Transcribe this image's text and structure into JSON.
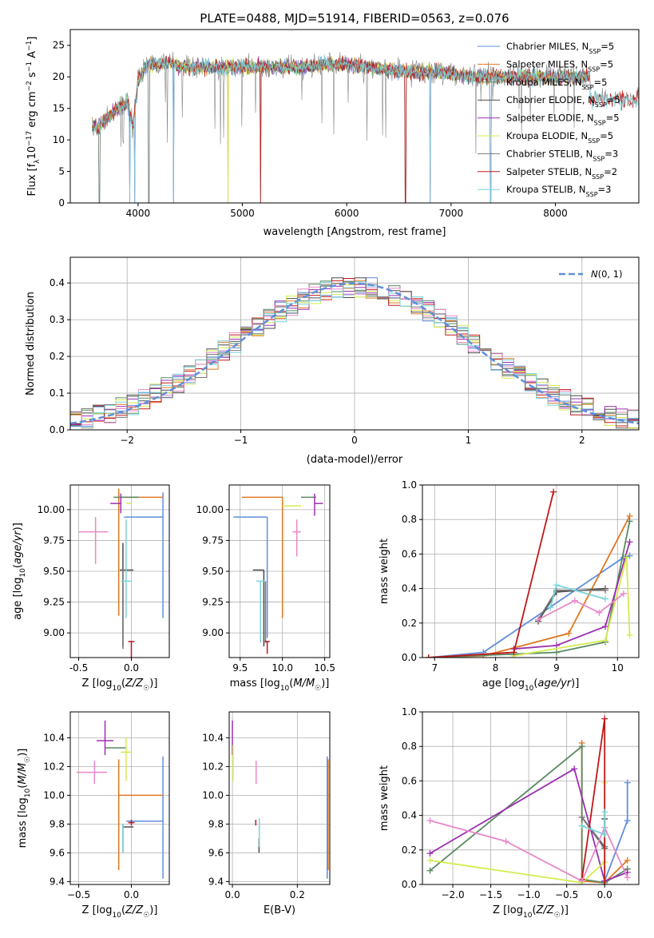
{
  "figure_title": "PLATE=0488, MJD=51914, FIBERID=0563, z=0.076",
  "chart_data": [
    {
      "id": "spectrum",
      "type": "line",
      "title": "PLATE=0488, MJD=51914, FIBERID=0563, z=0.076",
      "xlabel": "wavelength [Angstrom, rest frame]",
      "ylabel": "Flux [f_λ 10^-17 erg cm^-2 s^-1 A^-1]",
      "xlim": [
        3350,
        8800
      ],
      "ylim": [
        0,
        27.5
      ],
      "xticks": [
        4000,
        5000,
        6000,
        7000,
        8000
      ],
      "yticks": [
        0,
        5,
        10,
        15,
        20,
        25
      ],
      "grid": false,
      "legend_position": "top-right",
      "continuum": {
        "x": [
          3560,
          3620,
          3700,
          3800,
          3900,
          3950,
          4000,
          4100,
          4300,
          4500,
          4800,
          5000,
          5200,
          5500,
          5800,
          6000,
          6200,
          6400,
          6600,
          6800,
          7000,
          7200,
          7400
        ],
        "y": [
          12.5,
          12.0,
          13.5,
          15.0,
          16.0,
          12.0,
          19.5,
          22.0,
          22.0,
          21.5,
          21.5,
          21.5,
          21.5,
          21.5,
          22.0,
          22.0,
          21.5,
          21.0,
          20.8,
          20.8,
          20.5,
          20.0,
          20.0
        ]
      },
      "series": [
        {
          "name": "Chabrier MILES, N_SSP=5",
          "color": "#5f8fdb"
        },
        {
          "name": "Salpeter MILES, N_SSP=5",
          "color": "#e07820"
        },
        {
          "name": "Kroupa MILES, N_SSP=5",
          "color": "#5a8a62"
        },
        {
          "name": "Chabrier ELODIE, N_SSP=5",
          "color": "#4a4a4a"
        },
        {
          "name": "Salpeter ELODIE, N_SSP=5",
          "color": "#9b30b0"
        },
        {
          "name": "Kroupa ELODIE, N_SSP=5",
          "color": "#d4ec50"
        },
        {
          "name": "Chabrier STELIB, N_SSP=3",
          "color": "#7a7a7a"
        },
        {
          "name": "Salpeter STELIB, N_SSP=2",
          "color": "#c01818"
        },
        {
          "name": "Kroupa STELIB, N_SSP=3",
          "color": "#79d4dc"
        }
      ]
    },
    {
      "id": "residuals",
      "type": "histogram",
      "xlabel": "(data-model)/error",
      "ylabel": "Normed distribution",
      "xlim": [
        -2.5,
        2.5
      ],
      "ylim": [
        0,
        0.47
      ],
      "xticks": [
        -2,
        -1,
        0,
        1,
        2
      ],
      "yticks": [
        0.0,
        0.1,
        0.2,
        0.3,
        0.4
      ],
      "grid": true,
      "legend_position": "top-right",
      "reference_curve": {
        "name": "N(0,1)",
        "mean": 0,
        "sigma": 1,
        "color": "#5f8fdb",
        "style": "dashed"
      },
      "bin_width": 0.1
    },
    {
      "id": "age_vs_Z",
      "type": "errorbar",
      "xlabel": "Z [log10(Z/Z☉)]",
      "ylabel": "age [log10(age/yr)]",
      "xlim": [
        -0.58,
        0.36
      ],
      "ylim": [
        8.8,
        10.2
      ],
      "xticks": [
        -0.5,
        0.0
      ],
      "yticks": [
        9.0,
        9.25,
        9.5,
        9.75,
        10.0
      ],
      "grid": true,
      "points": [
        {
          "color": "#5f8fdb",
          "x": 0.3,
          "y": 9.94,
          "xerr": [
            0.37,
            0.0
          ],
          "yerr": [
            0.82,
            0.2
          ]
        },
        {
          "color": "#e07820",
          "x": -0.12,
          "y": 10.1,
          "xerr": [
            0.0,
            0.42
          ],
          "yerr": [
            0.96,
            0.07
          ]
        },
        {
          "color": "#5a8a62",
          "x": -0.05,
          "y": 10.1,
          "xerr": [
            0.12,
            0.12
          ],
          "yerr": [
            0.0,
            0.0
          ]
        },
        {
          "color": "#4a4a4a",
          "x": -0.08,
          "y": 9.51,
          "xerr": [
            0.03,
            0.1
          ],
          "yerr": [
            0.62,
            0.22
          ]
        },
        {
          "color": "#9b30b0",
          "x": -0.1,
          "y": 10.05,
          "xerr": [
            0.1,
            0.0
          ],
          "yerr": [
            0.08,
            0.08
          ]
        },
        {
          "color": "#d4ec50",
          "x": -0.05,
          "y": 10.05,
          "xerr": [
            0.0,
            0.05
          ],
          "yerr": [
            0.0,
            0.0
          ]
        },
        {
          "color": "#7a7a7a",
          "x": -0.08,
          "y": 9.42,
          "xerr": [
            0.0,
            0.0
          ],
          "yerr": [
            0.55,
            0.1
          ]
        },
        {
          "color": "#c01818",
          "x": 0.0,
          "y": 8.93,
          "xerr": [
            0.03,
            0.03
          ],
          "yerr": [
            0.13,
            0.0
          ]
        },
        {
          "color": "#e888c8",
          "x": -0.34,
          "y": 9.82,
          "xerr": [
            0.16,
            0.12
          ],
          "yerr": [
            0.26,
            0.12
          ]
        },
        {
          "color": "#79d4dc",
          "x": -0.05,
          "y": 9.42,
          "xerr": [
            0.05,
            0.05
          ],
          "yerr": [
            0.3,
            0.5
          ]
        }
      ]
    },
    {
      "id": "age_vs_mass",
      "type": "errorbar",
      "xlabel": "mass [log10(M/M☉)]",
      "xlim": [
        9.37,
        10.56
      ],
      "ylim": [
        8.8,
        10.2
      ],
      "xticks": [
        9.5,
        10.0,
        10.5
      ],
      "yticks": [
        9.0,
        9.25,
        9.5,
        9.75,
        10.0
      ],
      "grid": true,
      "points": [
        {
          "color": "#5f8fdb",
          "x": 9.82,
          "y": 9.94,
          "xerr": [
            0.4,
            0.0
          ],
          "yerr": [
            0.98,
            0.0
          ]
        },
        {
          "color": "#e07820",
          "x": 10.0,
          "y": 10.1,
          "xerr": [
            0.48,
            0.0
          ],
          "yerr": [
            0.98,
            0.0
          ]
        },
        {
          "color": "#5a8a62",
          "x": 10.22,
          "y": 10.1,
          "xerr": [
            0.0,
            0.18
          ],
          "yerr": [
            0.0,
            0.0
          ]
        },
        {
          "color": "#4a4a4a",
          "x": 9.78,
          "y": 9.51,
          "xerr": [
            0.13,
            0.0
          ],
          "yerr": [
            0.62,
            0.0
          ]
        },
        {
          "color": "#9b30b0",
          "x": 10.38,
          "y": 10.05,
          "xerr": [
            0.0,
            0.1
          ],
          "yerr": [
            0.1,
            0.08
          ]
        },
        {
          "color": "#d4ec50",
          "x": 10.17,
          "y": 10.03,
          "xerr": [
            0.15,
            0.05
          ],
          "yerr": [
            0.0,
            0.0
          ]
        },
        {
          "color": "#7a7a7a",
          "x": 9.8,
          "y": 9.42,
          "xerr": [
            0.0,
            0.0
          ],
          "yerr": [
            0.5,
            0.0
          ]
        },
        {
          "color": "#c01818",
          "x": 9.82,
          "y": 8.93,
          "xerr": [
            0.03,
            0.03
          ],
          "yerr": [
            0.1,
            0.0
          ]
        },
        {
          "color": "#e888c8",
          "x": 10.17,
          "y": 9.82,
          "xerr": [
            0.05,
            0.05
          ],
          "yerr": [
            0.2,
            0.1
          ]
        },
        {
          "color": "#79d4dc",
          "x": 9.74,
          "y": 9.42,
          "xerr": [
            0.05,
            0.05
          ],
          "yerr": [
            0.5,
            0.0
          ]
        }
      ]
    },
    {
      "id": "weights_vs_age",
      "type": "line",
      "xlabel": "age [log10(age/yr)]",
      "ylabel": "mass weight",
      "xlim": [
        6.8,
        10.35
      ],
      "ylim": [
        0,
        1.0
      ],
      "xticks": [
        7,
        8,
        9,
        10
      ],
      "yticks": [
        0.0,
        0.2,
        0.4,
        0.6,
        0.8,
        1.0
      ],
      "grid": true,
      "series": [
        {
          "color": "#5f8fdb",
          "x": [
            6.9,
            7.8,
            10.1,
            10.2
          ],
          "y": [
            0.0,
            0.03,
            0.58,
            0.59
          ]
        },
        {
          "color": "#e07820",
          "x": [
            6.9,
            7.8,
            9.2,
            10.2
          ],
          "y": [
            0.0,
            0.01,
            0.14,
            0.82
          ]
        },
        {
          "color": "#5a8a62",
          "x": [
            6.9,
            8.3,
            9.0,
            9.8,
            10.2
          ],
          "y": [
            0.0,
            0.02,
            0.03,
            0.09,
            0.79
          ]
        },
        {
          "color": "#4a4a4a",
          "x": [
            8.7,
            9.0,
            9.8
          ],
          "y": [
            0.21,
            0.38,
            0.4
          ]
        },
        {
          "color": "#9b30b0",
          "x": [
            8.3,
            9.0,
            9.8,
            10.2
          ],
          "y": [
            0.05,
            0.07,
            0.18,
            0.67
          ]
        },
        {
          "color": "#d4ec50",
          "x": [
            8.3,
            9.8,
            10.15,
            10.2
          ],
          "y": [
            0.01,
            0.1,
            0.58,
            0.13
          ]
        },
        {
          "color": "#7a7a7a",
          "x": [
            8.7,
            9.0,
            9.8
          ],
          "y": [
            0.22,
            0.39,
            0.39
          ]
        },
        {
          "color": "#c01818",
          "x": [
            6.9,
            8.3,
            8.95
          ],
          "y": [
            0.0,
            0.03,
            0.96
          ]
        },
        {
          "color": "#e888c8",
          "x": [
            8.7,
            9.3,
            9.7,
            10.1
          ],
          "y": [
            0.22,
            0.33,
            0.26,
            0.37
          ]
        },
        {
          "color": "#79d4dc",
          "x": [
            8.9,
            9.0,
            9.8
          ],
          "y": [
            0.29,
            0.42,
            0.34
          ]
        }
      ]
    },
    {
      "id": "mass_vs_Z",
      "type": "errorbar",
      "xlabel": "Z [log10(Z/Z☉)]",
      "ylabel": "mass [log10(M/M☉)]",
      "xlim": [
        -0.58,
        0.36
      ],
      "ylim": [
        9.38,
        10.58
      ],
      "xticks": [
        -0.5,
        0.0
      ],
      "yticks": [
        9.4,
        9.6,
        9.8,
        10.0,
        10.2,
        10.4
      ],
      "grid": true,
      "points": [
        {
          "color": "#5f8fdb",
          "x": 0.3,
          "y": 9.82,
          "xerr": [
            0.35,
            0.0
          ],
          "yerr": [
            0.4,
            0.45
          ]
        },
        {
          "color": "#e07820",
          "x": -0.12,
          "y": 10.0,
          "xerr": [
            0.0,
            0.42
          ],
          "yerr": [
            0.52,
            0.25
          ]
        },
        {
          "color": "#5a8a62",
          "x": -0.1,
          "y": 10.33,
          "xerr": [
            0.15,
            0.05
          ],
          "yerr": [
            0.0,
            0.0
          ]
        },
        {
          "color": "#4a4a4a",
          "x": -0.08,
          "y": 9.78,
          "xerr": [
            0.0,
            0.1
          ],
          "yerr": [
            0.0,
            0.0
          ]
        },
        {
          "color": "#9b30b0",
          "x": -0.25,
          "y": 10.38,
          "xerr": [
            0.08,
            0.08
          ],
          "yerr": [
            0.1,
            0.14
          ]
        },
        {
          "color": "#d4ec50",
          "x": -0.05,
          "y": 10.3,
          "xerr": [
            0.05,
            0.05
          ],
          "yerr": [
            0.2,
            0.1
          ]
        },
        {
          "color": "#7a7a7a",
          "x": -0.08,
          "y": 9.8,
          "xerr": [
            0.0,
            0.0
          ],
          "yerr": [
            0.2,
            0.0
          ]
        },
        {
          "color": "#c01818",
          "x": 0.0,
          "y": 9.81,
          "xerr": [
            0.03,
            0.03
          ],
          "yerr": [
            0.02,
            0.02
          ]
        },
        {
          "color": "#e888c8",
          "x": -0.35,
          "y": 10.16,
          "xerr": [
            0.17,
            0.12
          ],
          "yerr": [
            0.08,
            0.08
          ]
        },
        {
          "color": "#79d4dc",
          "x": -0.08,
          "y": 9.8,
          "xerr": [
            0.0,
            0.0
          ],
          "yerr": [
            0.2,
            0.0
          ]
        }
      ]
    },
    {
      "id": "mass_vs_EBV",
      "type": "errorbar",
      "xlabel": "E(B-V)",
      "xlim": [
        -0.01,
        0.3
      ],
      "ylim": [
        9.38,
        10.58
      ],
      "xticks": [
        0.0,
        0.2
      ],
      "yticks": [
        9.4,
        9.6,
        9.8,
        10.0,
        10.2,
        10.4
      ],
      "grid": true,
      "points": [
        {
          "color": "#5f8fdb",
          "x": 0.292,
          "y": 9.82,
          "xerr": [
            0.0,
            0.0
          ],
          "yerr": [
            0.4,
            0.45
          ]
        },
        {
          "color": "#e07820",
          "x": 0.295,
          "y": 10.0,
          "xerr": [
            0.0,
            0.0
          ],
          "yerr": [
            0.52,
            0.25
          ]
        },
        {
          "color": "#9b30b0",
          "x": 0.0,
          "y": 10.38,
          "xerr": [
            0.0,
            0.0
          ],
          "yerr": [
            0.1,
            0.14
          ]
        },
        {
          "color": "#d4ec50",
          "x": 0.002,
          "y": 10.25,
          "xerr": [
            0.0,
            0.0
          ],
          "yerr": [
            0.15,
            0.1
          ]
        },
        {
          "color": "#c01818",
          "x": 0.072,
          "y": 9.81,
          "xerr": [
            0.0,
            0.0
          ],
          "yerr": [
            0.02,
            0.02
          ]
        },
        {
          "color": "#e888c8",
          "x": 0.073,
          "y": 10.16,
          "xerr": [
            0.0,
            0.0
          ],
          "yerr": [
            0.08,
            0.08
          ]
        },
        {
          "color": "#4a4a4a",
          "x": 0.082,
          "y": 9.7,
          "xerr": [
            0.0,
            0.0
          ],
          "yerr": [
            0.1,
            0.0
          ]
        },
        {
          "color": "#79d4dc",
          "x": 0.083,
          "y": 9.74,
          "xerr": [
            0.0,
            0.0
          ],
          "yerr": [
            0.1,
            0.1
          ]
        }
      ]
    },
    {
      "id": "weights_vs_Z",
      "type": "line",
      "xlabel": "Z [log10(Z/Z☉)]",
      "ylabel": "mass weight",
      "xlim": [
        -2.4,
        0.45
      ],
      "ylim": [
        0,
        1.0
      ],
      "xticks": [
        -2.0,
        -1.5,
        -1.0,
        -0.5,
        0.0
      ],
      "yticks": [
        0.0,
        0.2,
        0.4,
        0.6,
        0.8,
        1.0
      ],
      "grid": true,
      "series": [
        {
          "color": "#5f8fdb",
          "x": [
            0.0,
            0.3,
            0.3
          ],
          "y": [
            0.02,
            0.37,
            0.59
          ]
        },
        {
          "color": "#e07820",
          "x": [
            -0.3,
            -0.3,
            0.0,
            0.3
          ],
          "y": [
            0.82,
            0.02,
            0.01,
            0.14
          ]
        },
        {
          "color": "#5a8a62",
          "x": [
            -2.3,
            -0.3,
            -0.3,
            0.0,
            0.3
          ],
          "y": [
            0.08,
            0.8,
            0.03,
            0.01,
            0.09
          ]
        },
        {
          "color": "#4a4a4a",
          "x": [
            -0.3,
            0.0,
            0.0
          ],
          "y": [
            0.39,
            0.21,
            0.38
          ]
        },
        {
          "color": "#9b30b0",
          "x": [
            -2.3,
            -0.4,
            0.0,
            0.3
          ],
          "y": [
            0.18,
            0.67,
            0.02,
            0.07
          ]
        },
        {
          "color": "#d4ec50",
          "x": [
            -2.3,
            -0.3,
            0.0,
            0.0,
            0.0
          ],
          "y": [
            0.14,
            0.01,
            0.13,
            0.59,
            0.0
          ]
        },
        {
          "color": "#7a7a7a",
          "x": [
            -0.3,
            0.0
          ],
          "y": [
            0.39,
            0.22
          ]
        },
        {
          "color": "#c01818",
          "x": [
            -0.3,
            0.0,
            0.0
          ],
          "y": [
            0.03,
            0.96,
            0.0
          ]
        },
        {
          "color": "#e888c8",
          "x": [
            -2.3,
            -1.3,
            -0.3,
            0.0,
            0.3
          ],
          "y": [
            0.37,
            0.25,
            0.02,
            0.33,
            0.04
          ]
        },
        {
          "color": "#79d4dc",
          "x": [
            -0.3,
            0.0,
            0.0
          ],
          "y": [
            0.34,
            0.29,
            0.42
          ]
        }
      ]
    }
  ]
}
